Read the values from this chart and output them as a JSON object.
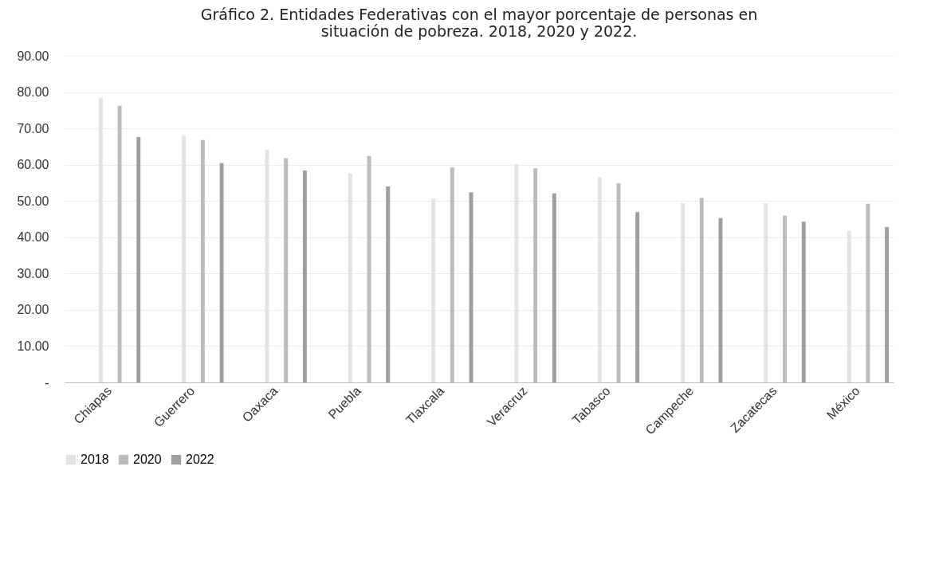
{
  "chart_data": {
    "type": "bar",
    "title": "Gráfico 2. Entidades Federativas con el mayor porcentaje de personas en situación de pobreza. 2018, 2020 y 2022.",
    "categories": [
      "Chiapas",
      "Guerrero",
      "Oaxaca",
      "Puebla",
      "Tlaxcala",
      "Veracruz",
      "Tabasco",
      "Campeche",
      "Zacatecas",
      "México"
    ],
    "series": [
      {
        "name": "2018",
        "color": "#e3e3e3",
        "values": [
          78.4,
          68.0,
          64.2,
          57.6,
          50.6,
          60.2,
          56.6,
          49.4,
          49.4,
          41.8
        ]
      },
      {
        "name": "2020",
        "color": "#bcbcbc",
        "values": [
          76.2,
          66.8,
          61.8,
          62.4,
          59.2,
          59.0,
          54.9,
          50.8,
          46.0,
          49.2
        ]
      },
      {
        "name": "2022",
        "color": "#9f9f9f",
        "values": [
          67.6,
          60.4,
          58.4,
          54.0,
          52.4,
          52.1,
          46.9,
          45.3,
          44.3,
          42.8
        ]
      }
    ],
    "ylim": [
      0,
      90
    ],
    "yticks": [
      {
        "value": 0,
        "label": "-"
      },
      {
        "value": 10,
        "label": "10.00"
      },
      {
        "value": 20,
        "label": "20.00"
      },
      {
        "value": 30,
        "label": "30.00"
      },
      {
        "value": 40,
        "label": "40.00"
      },
      {
        "value": 50,
        "label": "50.00"
      },
      {
        "value": 60,
        "label": "60.00"
      },
      {
        "value": 70,
        "label": "70.00"
      },
      {
        "value": 80,
        "label": "80.00"
      },
      {
        "value": 90,
        "label": "90.00"
      }
    ],
    "grid": "y",
    "legend": "bottom"
  }
}
